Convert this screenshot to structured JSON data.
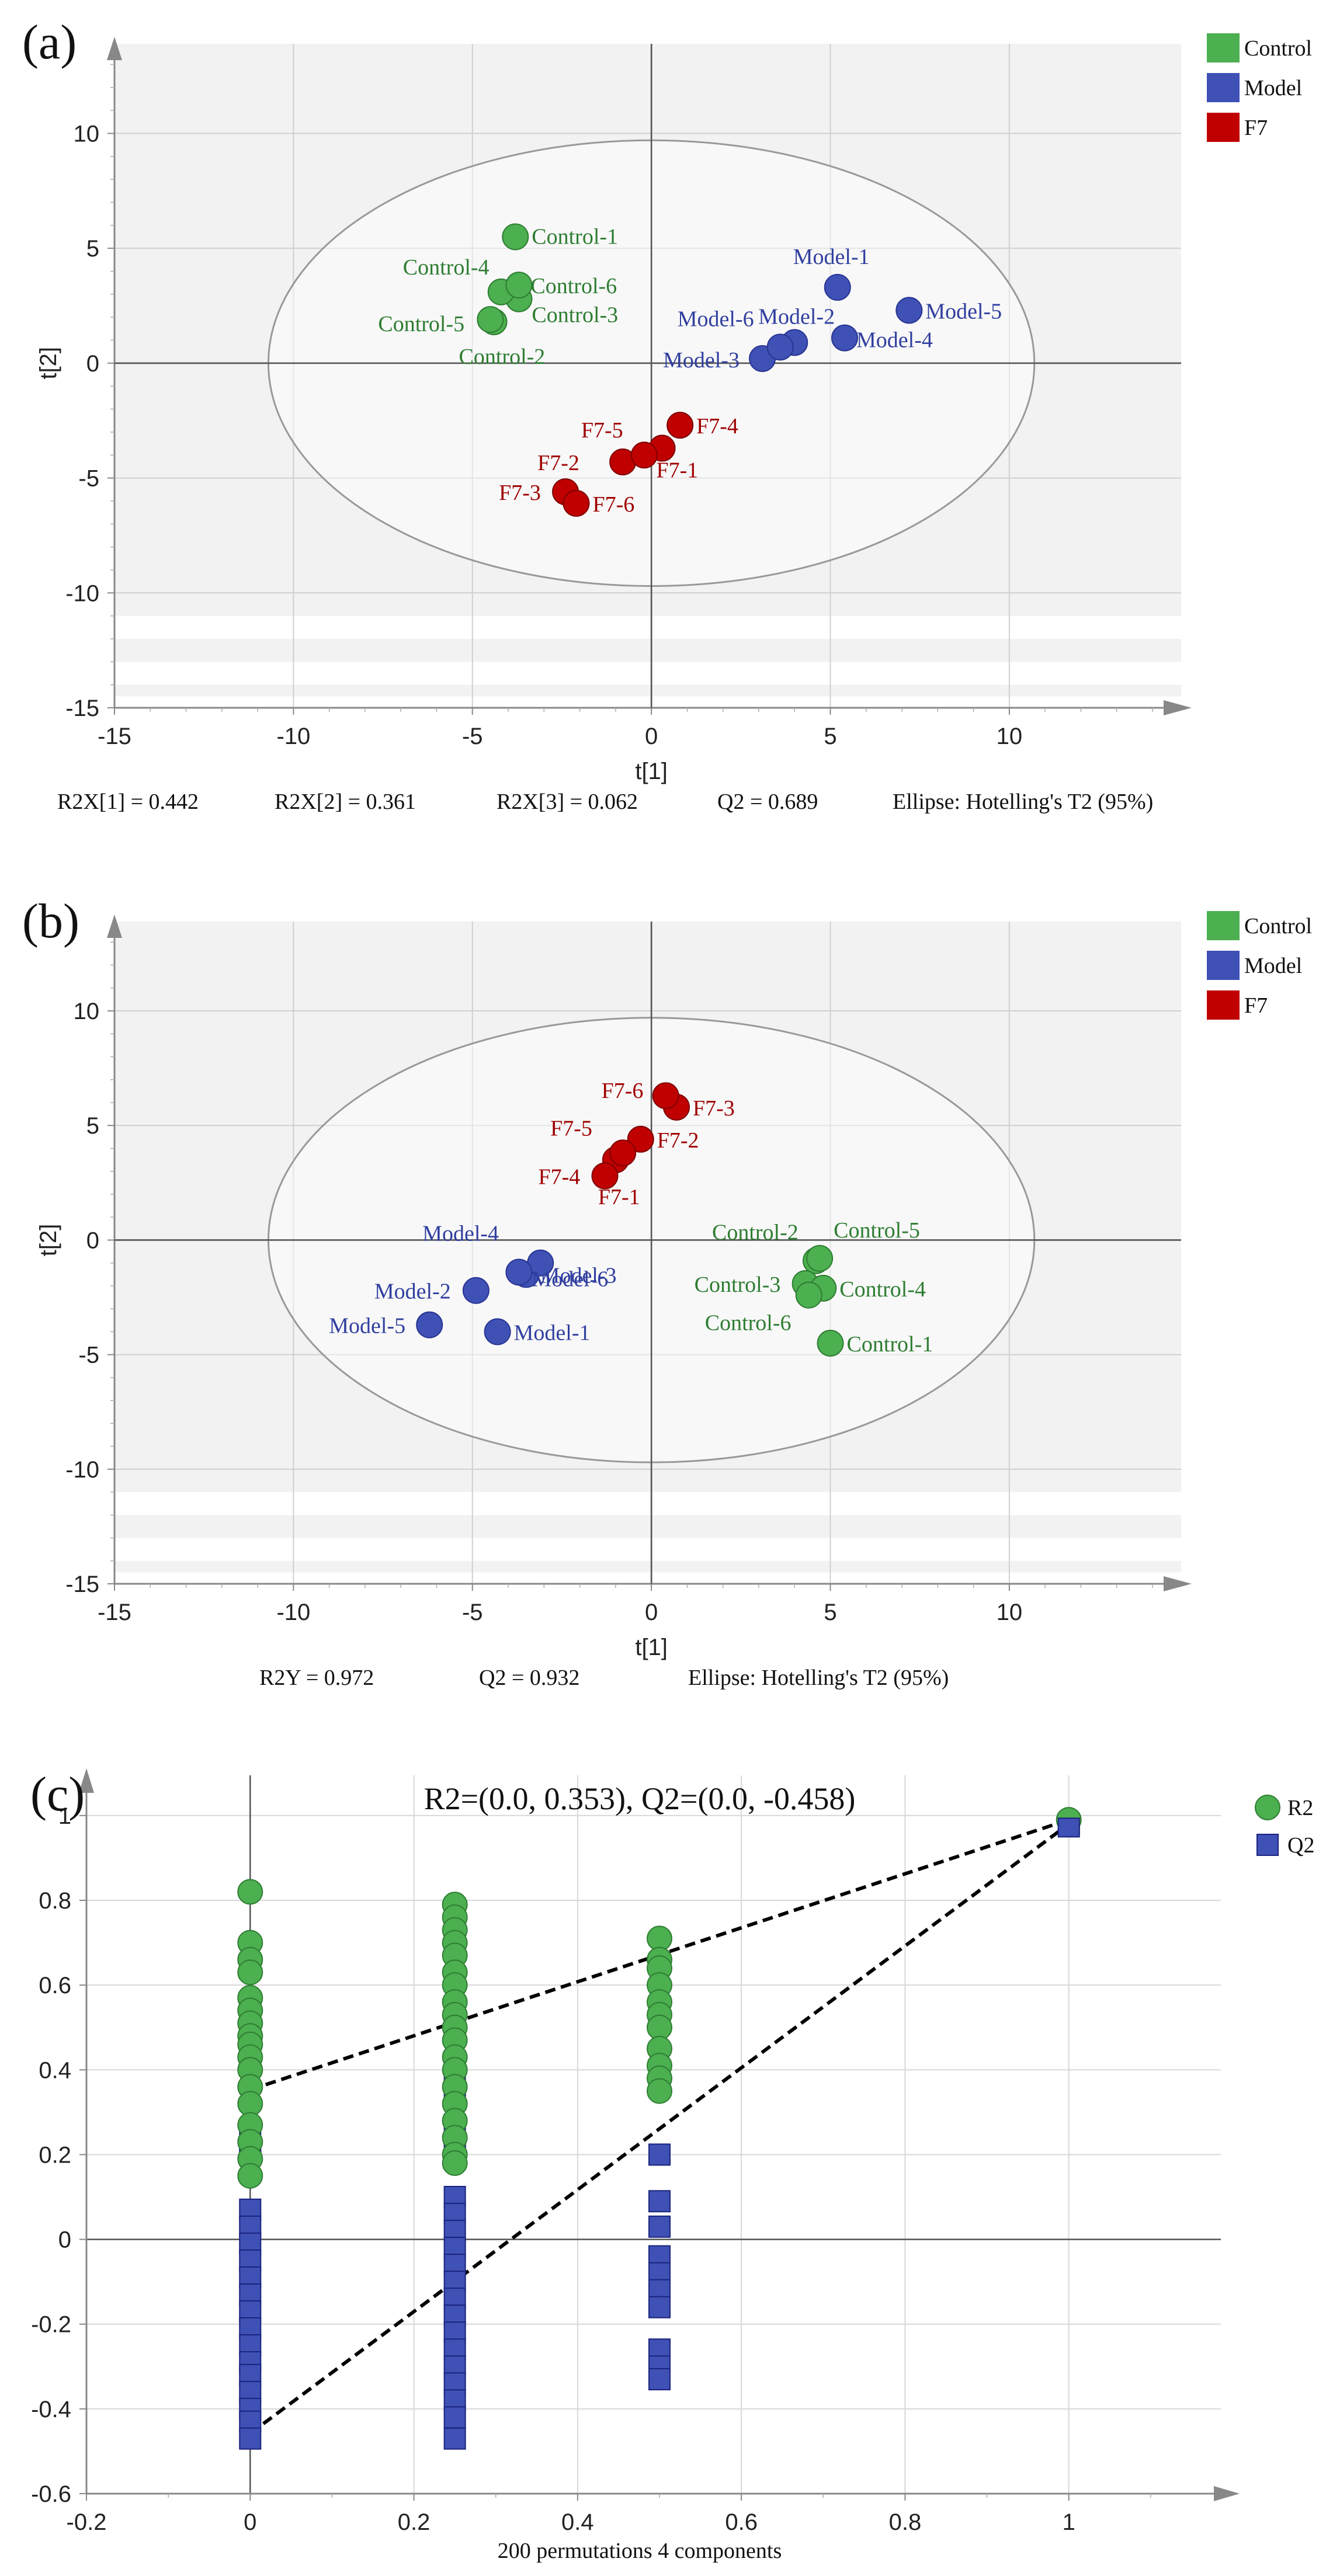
{
  "colors": {
    "control": "#4caf50",
    "control_stroke": "#2e7d32",
    "control_text": "#2e7d32",
    "model": "#3f51b5",
    "model_stroke": "#283593",
    "model_text": "#303f9f",
    "f7": "#c00000",
    "f7_stroke": "#7f0000",
    "f7_text": "#a00000",
    "r2": "#4caf50",
    "q2": "#3f51b5"
  },
  "chart_data": [
    {
      "id": "a",
      "panel_label": "(a)",
      "type": "scatter",
      "xlabel": "t[1]",
      "ylabel": "t[2]",
      "xlim": [
        -15,
        15
      ],
      "ylim": [
        -15,
        15
      ],
      "xticks": [
        -15,
        -10,
        -5,
        0,
        5,
        10
      ],
      "yticks": [
        -15,
        -10,
        -5,
        0,
        5,
        10
      ],
      "ellipse": {
        "cx": 0,
        "cy": 0,
        "rx": 10.7,
        "ry": 9.7
      },
      "legend": [
        "Control",
        "Model",
        "F7"
      ],
      "series": [
        {
          "name": "Control",
          "points": [
            {
              "label": "Control-1",
              "x": -3.8,
              "y": 5.5
            },
            {
              "label": "Control-2",
              "x": -4.4,
              "y": 1.8
            },
            {
              "label": "Control-3",
              "x": -3.7,
              "y": 2.8
            },
            {
              "label": "Control-4",
              "x": -4.2,
              "y": 3.1
            },
            {
              "label": "Control-5",
              "x": -4.5,
              "y": 1.9
            },
            {
              "label": "Control-6",
              "x": -3.7,
              "y": 3.4
            }
          ]
        },
        {
          "name": "Model",
          "points": [
            {
              "label": "Model-1",
              "x": 5.2,
              "y": 3.3
            },
            {
              "label": "Model-2",
              "x": 4.0,
              "y": 0.9
            },
            {
              "label": "Model-3",
              "x": 3.1,
              "y": 0.2
            },
            {
              "label": "Model-4",
              "x": 5.4,
              "y": 1.1
            },
            {
              "label": "Model-5",
              "x": 7.2,
              "y": 2.3
            },
            {
              "label": "Model-6",
              "x": 3.6,
              "y": 0.7
            }
          ]
        },
        {
          "name": "F7",
          "points": [
            {
              "label": "F7-1",
              "x": 0.3,
              "y": -3.7
            },
            {
              "label": "F7-2",
              "x": -0.8,
              "y": -4.3
            },
            {
              "label": "F7-3",
              "x": -2.4,
              "y": -5.6
            },
            {
              "label": "F7-4",
              "x": 0.8,
              "y": -2.7
            },
            {
              "label": "F7-5",
              "x": -0.2,
              "y": -4.0
            },
            {
              "label": "F7-6",
              "x": -2.1,
              "y": -6.1
            }
          ]
        }
      ],
      "stats": [
        "R2X[1] = 0.442",
        "R2X[2] = 0.361",
        "R2X[3] = 0.062",
        "Q2 = 0.689",
        "Ellipse: Hotelling's T2 (95%)"
      ]
    },
    {
      "id": "b",
      "panel_label": "(b)",
      "type": "scatter",
      "xlabel": "t[1]",
      "ylabel": "t[2]",
      "xlim": [
        -15,
        15
      ],
      "ylim": [
        -15,
        15
      ],
      "xticks": [
        -15,
        -10,
        -5,
        0,
        5,
        10
      ],
      "yticks": [
        -15,
        -10,
        -5,
        0,
        5,
        10
      ],
      "ellipse": {
        "cx": 0,
        "cy": 0,
        "rx": 10.7,
        "ry": 9.7
      },
      "legend": [
        "Control",
        "Model",
        "F7"
      ],
      "series": [
        {
          "name": "Control",
          "points": [
            {
              "label": "Control-1",
              "x": 5.0,
              "y": -4.5
            },
            {
              "label": "Control-2",
              "x": 4.6,
              "y": -0.9
            },
            {
              "label": "Control-3",
              "x": 4.3,
              "y": -1.9
            },
            {
              "label": "Control-4",
              "x": 4.8,
              "y": -2.1
            },
            {
              "label": "Control-5",
              "x": 4.7,
              "y": -0.8
            },
            {
              "label": "Control-6",
              "x": 4.4,
              "y": -2.4
            }
          ]
        },
        {
          "name": "Model",
          "points": [
            {
              "label": "Model-1",
              "x": -4.3,
              "y": -4.0
            },
            {
              "label": "Model-2",
              "x": -4.9,
              "y": -2.2
            },
            {
              "label": "Model-3",
              "x": -3.5,
              "y": -1.5
            },
            {
              "label": "Model-4",
              "x": -3.1,
              "y": -1.0
            },
            {
              "label": "Model-5",
              "x": -6.2,
              "y": -3.7
            },
            {
              "label": "Model-6",
              "x": -3.7,
              "y": -1.4
            }
          ]
        },
        {
          "name": "F7",
          "points": [
            {
              "label": "F7-1",
              "x": -1.0,
              "y": 3.5
            },
            {
              "label": "F7-2",
              "x": -0.3,
              "y": 4.4
            },
            {
              "label": "F7-3",
              "x": 0.7,
              "y": 5.8
            },
            {
              "label": "F7-4",
              "x": -1.3,
              "y": 2.8
            },
            {
              "label": "F7-5",
              "x": -0.8,
              "y": 3.8
            },
            {
              "label": "F7-6",
              "x": 0.4,
              "y": 6.3
            }
          ]
        }
      ],
      "stats": [
        "R2Y = 0.972",
        "Q2 = 0.932",
        "Ellipse: Hotelling's T2 (95%)"
      ]
    },
    {
      "id": "c",
      "panel_label": "(c)",
      "type": "scatter",
      "title": "R2=(0.0, 0.353), Q2=(0.0, -0.458)",
      "xlabel": "200 permutations 4 components",
      "ylabel": "",
      "xlim": [
        -0.2,
        1.2
      ],
      "ylim": [
        -0.6,
        1.15
      ],
      "xticks": [
        -0.2,
        0,
        0.2,
        0.4,
        0.6,
        0.8,
        1
      ],
      "yticks": [
        -0.6,
        -0.4,
        -0.2,
        0,
        0.2,
        0.4,
        0.6,
        0.8,
        1
      ],
      "legend": [
        "R2",
        "Q2"
      ],
      "series": [
        {
          "name": "R2",
          "points": [
            {
              "x": 0,
              "y": 0.82
            },
            {
              "x": 0,
              "y": 0.7
            },
            {
              "x": 0,
              "y": 0.66
            },
            {
              "x": 0,
              "y": 0.63
            },
            {
              "x": 0,
              "y": 0.57
            },
            {
              "x": 0,
              "y": 0.54
            },
            {
              "x": 0,
              "y": 0.51
            },
            {
              "x": 0,
              "y": 0.48
            },
            {
              "x": 0,
              "y": 0.46
            },
            {
              "x": 0,
              "y": 0.43
            },
            {
              "x": 0,
              "y": 0.4
            },
            {
              "x": 0,
              "y": 0.36
            },
            {
              "x": 0,
              "y": 0.32
            },
            {
              "x": 0,
              "y": 0.27
            },
            {
              "x": 0,
              "y": 0.23
            },
            {
              "x": 0,
              "y": 0.19
            },
            {
              "x": 0,
              "y": 0.15
            },
            {
              "x": 0.25,
              "y": 0.79
            },
            {
              "x": 0.25,
              "y": 0.76
            },
            {
              "x": 0.25,
              "y": 0.73
            },
            {
              "x": 0.25,
              "y": 0.7
            },
            {
              "x": 0.25,
              "y": 0.67
            },
            {
              "x": 0.25,
              "y": 0.63
            },
            {
              "x": 0.25,
              "y": 0.6
            },
            {
              "x": 0.25,
              "y": 0.56
            },
            {
              "x": 0.25,
              "y": 0.53
            },
            {
              "x": 0.25,
              "y": 0.5
            },
            {
              "x": 0.25,
              "y": 0.47
            },
            {
              "x": 0.25,
              "y": 0.43
            },
            {
              "x": 0.25,
              "y": 0.4
            },
            {
              "x": 0.25,
              "y": 0.36
            },
            {
              "x": 0.25,
              "y": 0.32
            },
            {
              "x": 0.25,
              "y": 0.28
            },
            {
              "x": 0.25,
              "y": 0.24
            },
            {
              "x": 0.25,
              "y": 0.2
            },
            {
              "x": 0.25,
              "y": 0.18
            },
            {
              "x": 0.5,
              "y": 0.71
            },
            {
              "x": 0.5,
              "y": 0.66
            },
            {
              "x": 0.5,
              "y": 0.64
            },
            {
              "x": 0.5,
              "y": 0.6
            },
            {
              "x": 0.5,
              "y": 0.56
            },
            {
              "x": 0.5,
              "y": 0.53
            },
            {
              "x": 0.5,
              "y": 0.5
            },
            {
              "x": 0.5,
              "y": 0.45
            },
            {
              "x": 0.5,
              "y": 0.41
            },
            {
              "x": 0.5,
              "y": 0.38
            },
            {
              "x": 0.5,
              "y": 0.35
            },
            {
              "x": 1,
              "y": 0.99
            }
          ]
        },
        {
          "name": "Q2",
          "points": [
            {
              "x": 0,
              "y": 0.23
            },
            {
              "x": 0,
              "y": 0.21
            },
            {
              "x": 0,
              "y": 0.07
            },
            {
              "x": 0,
              "y": 0.03
            },
            {
              "x": 0,
              "y": -0.01
            },
            {
              "x": 0,
              "y": -0.05
            },
            {
              "x": 0,
              "y": -0.09
            },
            {
              "x": 0,
              "y": -0.13
            },
            {
              "x": 0,
              "y": -0.17
            },
            {
              "x": 0,
              "y": -0.21
            },
            {
              "x": 0,
              "y": -0.25
            },
            {
              "x": 0,
              "y": -0.29
            },
            {
              "x": 0,
              "y": -0.32
            },
            {
              "x": 0,
              "y": -0.36
            },
            {
              "x": 0,
              "y": -0.4
            },
            {
              "x": 0,
              "y": -0.43
            },
            {
              "x": 0,
              "y": -0.47
            },
            {
              "x": 0.25,
              "y": 0.4
            },
            {
              "x": 0.25,
              "y": 0.33
            },
            {
              "x": 0.25,
              "y": 0.27
            },
            {
              "x": 0.25,
              "y": 0.22
            },
            {
              "x": 0.25,
              "y": 0.2
            },
            {
              "x": 0.25,
              "y": 0.1
            },
            {
              "x": 0.25,
              "y": 0.06
            },
            {
              "x": 0.25,
              "y": 0.02
            },
            {
              "x": 0.25,
              "y": -0.02
            },
            {
              "x": 0.25,
              "y": -0.06
            },
            {
              "x": 0.25,
              "y": -0.1
            },
            {
              "x": 0.25,
              "y": -0.14
            },
            {
              "x": 0.25,
              "y": -0.18
            },
            {
              "x": 0.25,
              "y": -0.22
            },
            {
              "x": 0.25,
              "y": -0.26
            },
            {
              "x": 0.25,
              "y": -0.3
            },
            {
              "x": 0.25,
              "y": -0.34
            },
            {
              "x": 0.25,
              "y": -0.38
            },
            {
              "x": 0.25,
              "y": -0.42
            },
            {
              "x": 0.25,
              "y": -0.47
            },
            {
              "x": 0.5,
              "y": 0.2
            },
            {
              "x": 0.5,
              "y": 0.09
            },
            {
              "x": 0.5,
              "y": 0.03
            },
            {
              "x": 0.5,
              "y": -0.04
            },
            {
              "x": 0.5,
              "y": -0.08
            },
            {
              "x": 0.5,
              "y": -0.12
            },
            {
              "x": 0.5,
              "y": -0.16
            },
            {
              "x": 0.5,
              "y": -0.26
            },
            {
              "x": 0.5,
              "y": -0.3
            },
            {
              "x": 0.5,
              "y": -0.33
            },
            {
              "x": 1,
              "y": 0.98
            }
          ]
        }
      ],
      "regression_lines": [
        {
          "name": "R2",
          "from": [
            0,
            0.353
          ],
          "to": [
            1,
            0.99
          ]
        },
        {
          "name": "Q2",
          "from": [
            0,
            -0.458
          ],
          "to": [
            1,
            0.98
          ]
        }
      ]
    }
  ]
}
